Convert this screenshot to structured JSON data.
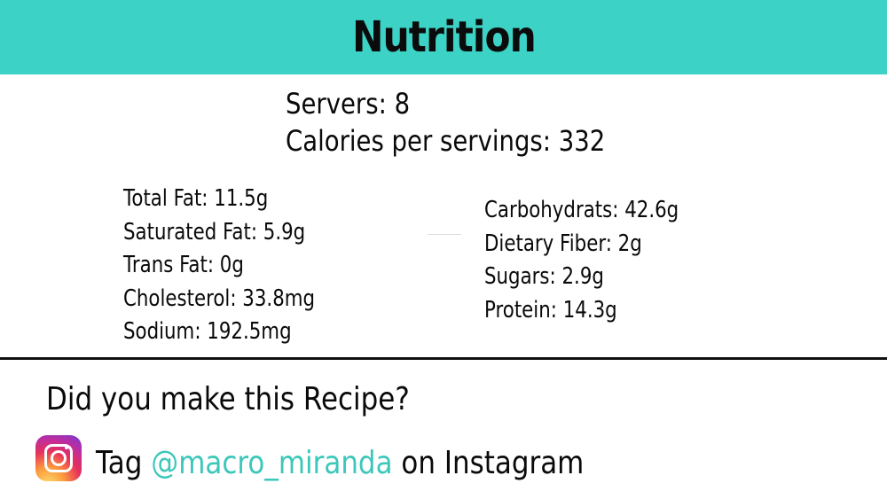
{
  "header": {
    "title": "Nutrition",
    "background_color": "#3cd2c5"
  },
  "summary": {
    "servers": "Servers: 8",
    "calories": "Calories per servings: 332"
  },
  "nutrients_left": [
    "Total Fat: 11.5g",
    "Saturated Fat: 5.9g",
    "Trans Fat: 0g",
    "Cholesterol: 33.8mg",
    "Sodium: 192.5mg"
  ],
  "nutrients_right": [
    "Carbohydrats: 42.6g",
    "Dietary Fiber: 2g",
    "Sugars: 2.9g",
    "Protein: 14.3g"
  ],
  "footer": {
    "question": "Did you make this Recipe?",
    "tag_prefix": "Tag",
    "handle": "@macro_miranda",
    "tag_suffix": "on Instagram",
    "handle_color": "#3cc7bb",
    "icon": "instagram-icon"
  }
}
